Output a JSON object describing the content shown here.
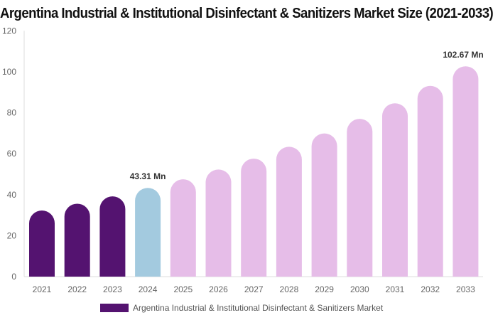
{
  "chart_data": {
    "type": "bar",
    "title": "Argentina Industrial & Institutional Disinfectant & Sanitizers Market Size (2021-2033)",
    "categories": [
      "2021",
      "2022",
      "2023",
      "2024",
      "2025",
      "2026",
      "2027",
      "2028",
      "2029",
      "2030",
      "2031",
      "2032",
      "2033"
    ],
    "series": [
      {
        "name": "Argentina Industrial & Institutional Disinfectant & Sanitizers Market",
        "values": [
          32.3,
          35.6,
          39.2,
          43.31,
          47.5,
          52.3,
          57.6,
          63.4,
          69.9,
          77.0,
          84.6,
          93.1,
          102.67
        ]
      }
    ],
    "data_labels": {
      "3": "43.31 Mn",
      "12": "102.67 Mn"
    },
    "ylim": [
      0,
      120
    ],
    "yticks": [
      0,
      20,
      40,
      60,
      80,
      100,
      120
    ],
    "xlabel": "",
    "ylabel": "",
    "grid": false,
    "legend_position": "bottom",
    "colors": {
      "historical": "#541370",
      "base_year": "#a3cadf",
      "forecast": "#e6bde8"
    }
  }
}
